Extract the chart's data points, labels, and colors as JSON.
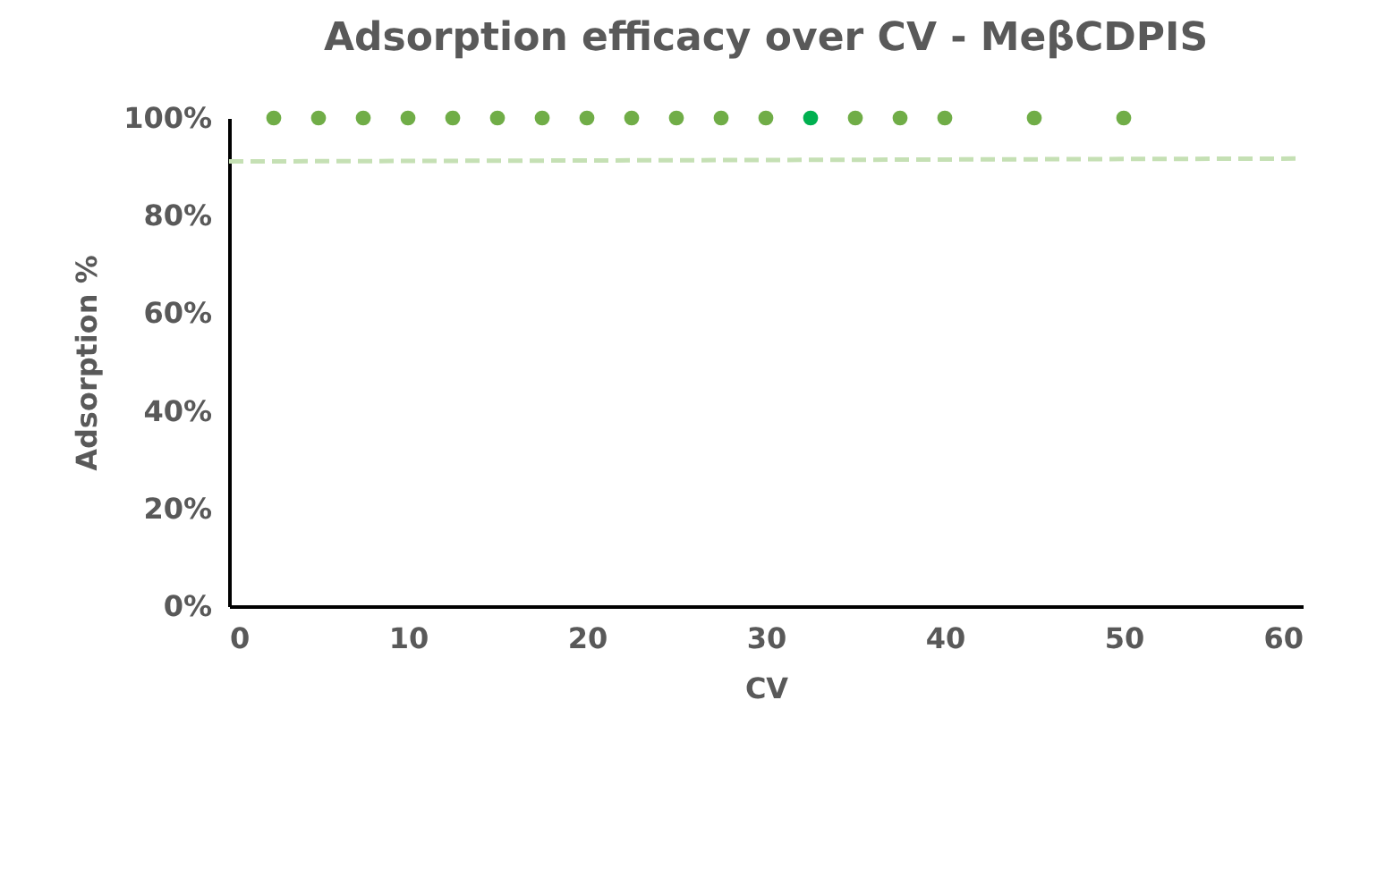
{
  "chart_data": {
    "type": "scatter",
    "title": "Adsorption efficacy over CV - MeβCDPIS",
    "xlabel": "CV",
    "ylabel": "Adsorption %",
    "xlim": [
      0,
      60
    ],
    "xticks": [
      0,
      10,
      20,
      30,
      40,
      50,
      60
    ],
    "ylim": [
      0,
      100
    ],
    "yticks": [
      {
        "value": 0,
        "label": "0%"
      },
      {
        "value": 20,
        "label": "20%"
      },
      {
        "value": 40,
        "label": "40%"
      },
      {
        "value": 60,
        "label": "60%"
      },
      {
        "value": 80,
        "label": "80%"
      },
      {
        "value": 100,
        "label": "100%"
      }
    ],
    "grid": false,
    "series": [
      {
        "marker": "circle",
        "color": "#70ad47",
        "colors": [
          "#70ad47",
          "#70ad47",
          "#70ad47",
          "#70ad47",
          "#70ad47",
          "#70ad47",
          "#70ad47",
          "#70ad47",
          "#70ad47",
          "#70ad47",
          "#70ad47",
          "#70ad47",
          "#00b050",
          "#70ad47",
          "#70ad47",
          "#70ad47",
          "#70ad47",
          "#70ad47"
        ],
        "x": [
          2.5,
          5,
          7.5,
          10,
          12.5,
          15,
          17.5,
          20,
          22.5,
          25,
          27.5,
          30,
          32.5,
          35,
          37.5,
          40,
          45,
          50
        ],
        "values": [
          100,
          100,
          100,
          100,
          100,
          100,
          100,
          100,
          100,
          100,
          100,
          100,
          100,
          100,
          100,
          100,
          100,
          100
        ]
      },
      {
        "type": "line",
        "line_style": "dashed",
        "color": "#c5e0b4",
        "x": [
          0,
          60
        ],
        "values": [
          91.1,
          91.7
        ]
      }
    ]
  }
}
